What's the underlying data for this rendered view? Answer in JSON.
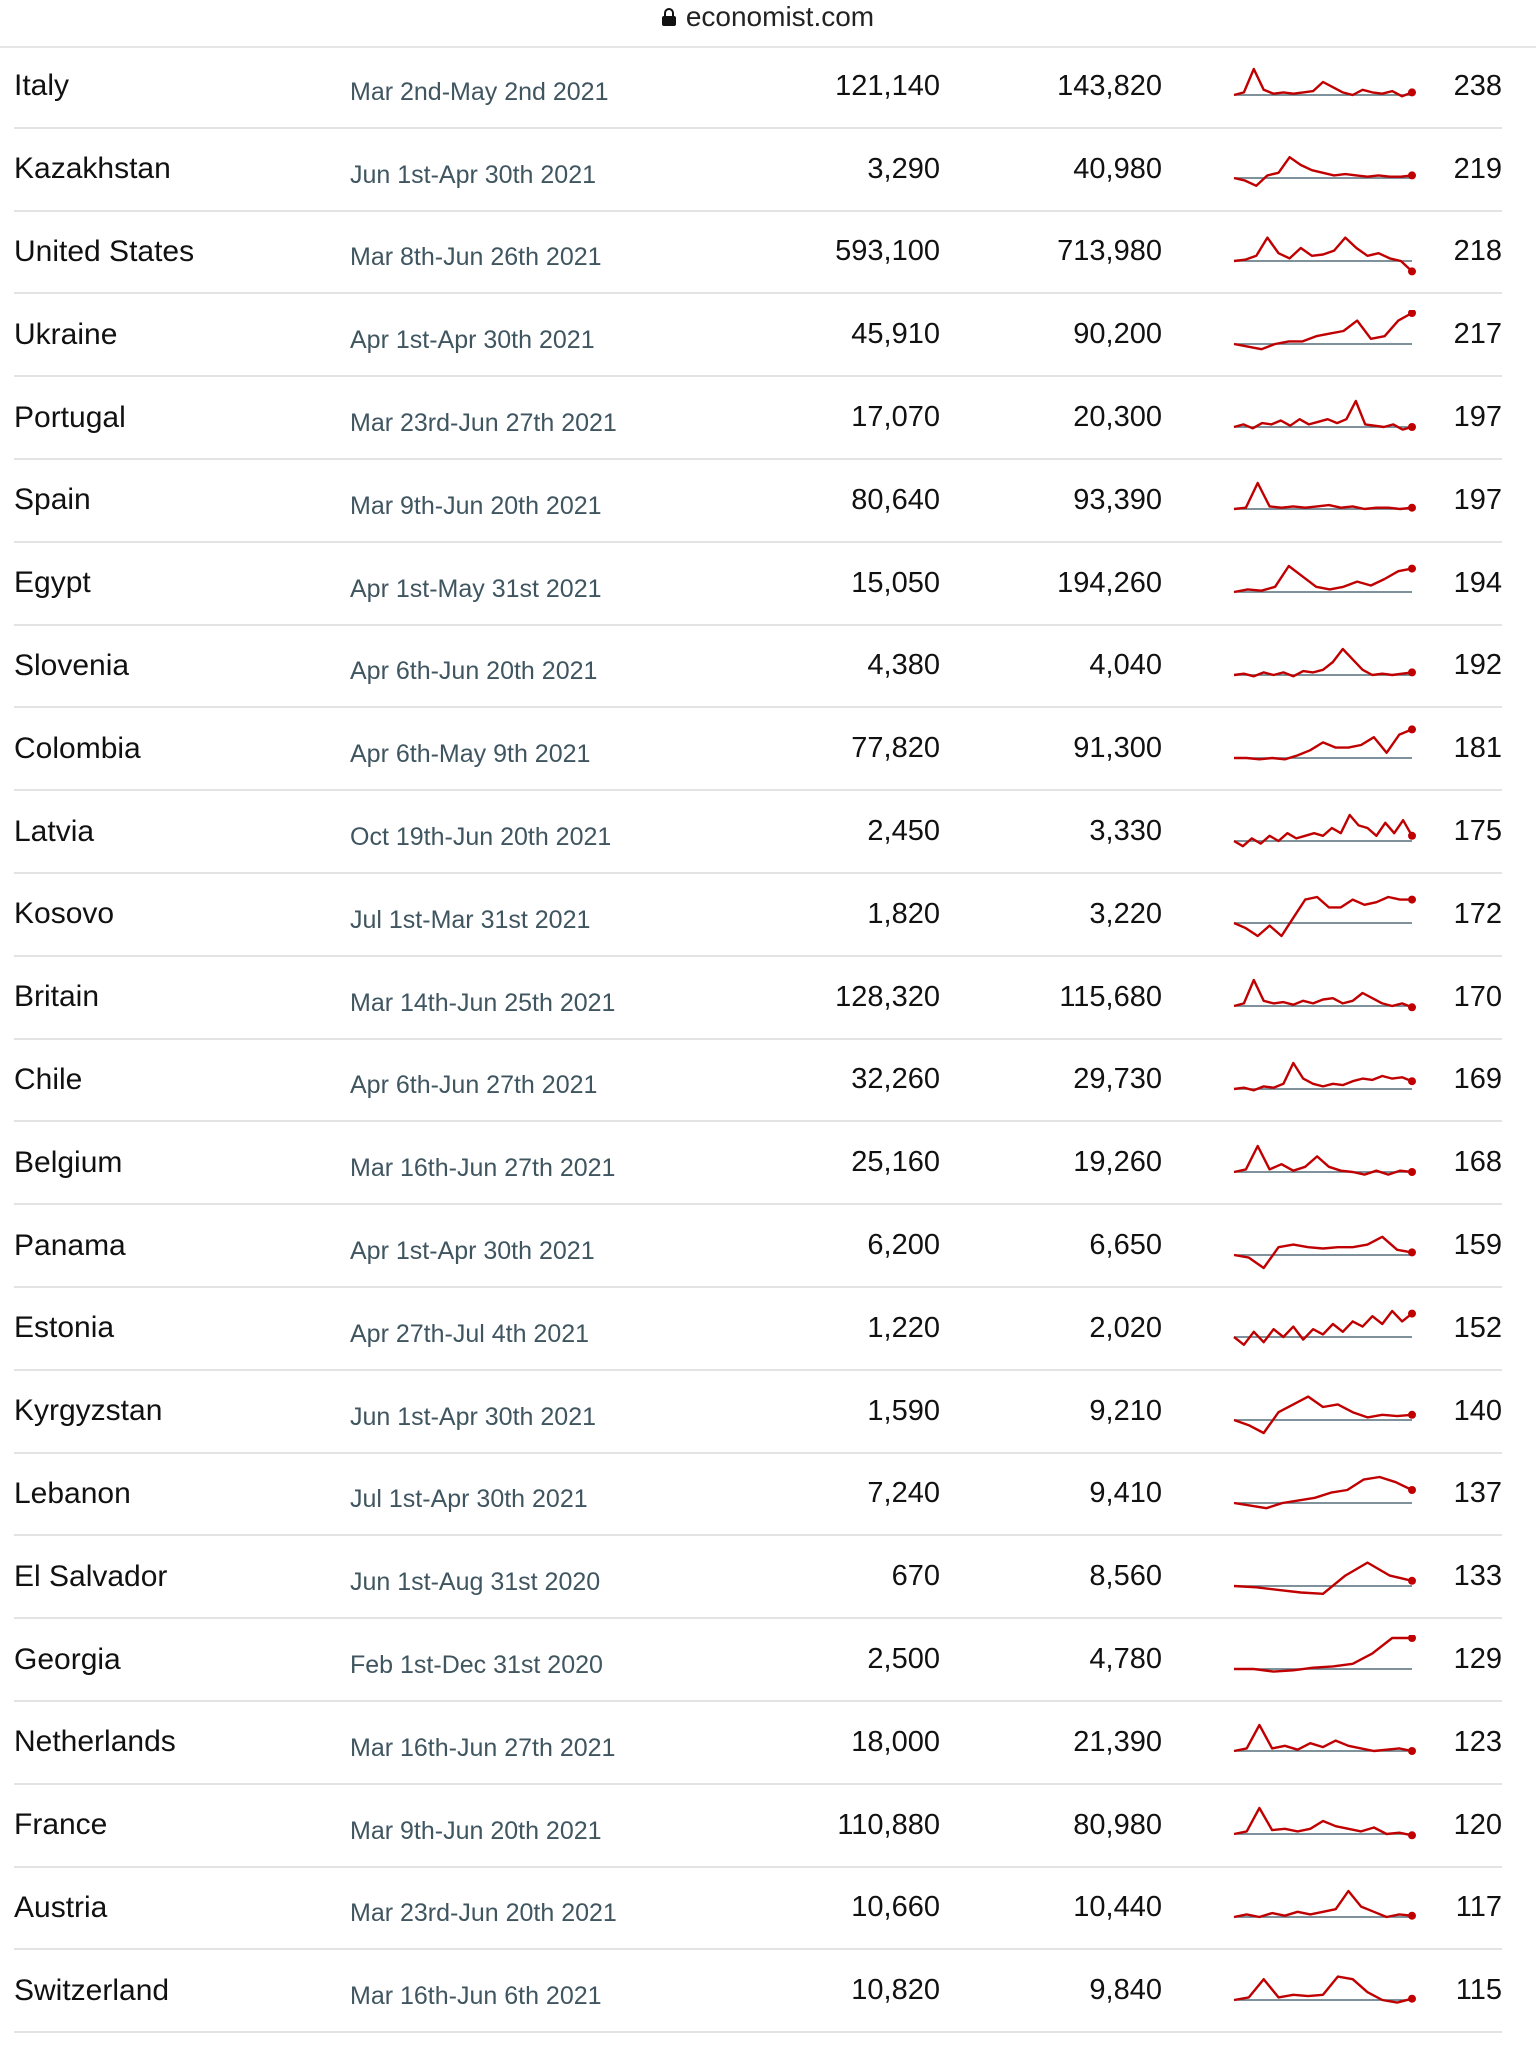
{
  "browser": {
    "url": "economist.com"
  },
  "rows": [
    {
      "country": "Italy",
      "period": "Mar 2nd-May 2nd 2021",
      "official_deaths": "121,140",
      "excess_deaths": "143,820",
      "excess_per_100k": "238",
      "trend": [
        0,
        0.1,
        1.0,
        0.2,
        0.05,
        0.1,
        0.05,
        0.1,
        0.15,
        0.5,
        0.3,
        0.1,
        0.0,
        0.2,
        0.1,
        0.05,
        0.15,
        -0.05,
        0.1
      ]
    },
    {
      "country": "Kazakhstan",
      "period": "Jun 1st-Apr 30th 2021",
      "official_deaths": "3,290",
      "excess_deaths": "40,980",
      "excess_per_100k": "219",
      "trend": [
        0,
        -0.1,
        -0.3,
        0.1,
        0.2,
        0.8,
        0.5,
        0.3,
        0.2,
        0.1,
        0.15,
        0.1,
        0.05,
        0.1,
        0.05,
        0.05,
        0.1
      ]
    },
    {
      "country": "United States",
      "period": "Mar 8th-Jun 26th 2021",
      "official_deaths": "593,100",
      "excess_deaths": "713,980",
      "excess_per_100k": "218",
      "trend": [
        0,
        0.05,
        0.2,
        0.9,
        0.3,
        0.1,
        0.5,
        0.2,
        0.25,
        0.4,
        0.9,
        0.5,
        0.2,
        0.3,
        0.1,
        0.0,
        -0.4
      ]
    },
    {
      "country": "Ukraine",
      "period": "Apr 1st-Apr 30th 2021",
      "official_deaths": "45,910",
      "excess_deaths": "90,200",
      "excess_per_100k": "217",
      "trend": [
        0,
        -0.1,
        -0.2,
        0.0,
        0.1,
        0.1,
        0.3,
        0.4,
        0.5,
        0.9,
        0.2,
        0.3,
        0.9,
        1.2
      ]
    },
    {
      "country": "Portugal",
      "period": "Mar 23rd-Jun 27th 2021",
      "official_deaths": "17,070",
      "excess_deaths": "20,300",
      "excess_per_100k": "197",
      "trend": [
        0,
        0.1,
        -0.05,
        0.15,
        0.1,
        0.25,
        0.05,
        0.3,
        0.1,
        0.2,
        0.3,
        0.15,
        0.3,
        1.0,
        0.1,
        0.05,
        0.0,
        0.1,
        -0.1,
        0.0
      ]
    },
    {
      "country": "Spain",
      "period": "Mar 9th-Jun 20th 2021",
      "official_deaths": "80,640",
      "excess_deaths": "93,390",
      "excess_per_100k": "197",
      "trend": [
        0,
        0.05,
        1.0,
        0.1,
        0.05,
        0.1,
        0.05,
        0.1,
        0.15,
        0.05,
        0.1,
        0.0,
        0.05,
        0.05,
        0.0,
        0.05
      ]
    },
    {
      "country": "Egypt",
      "period": "Apr 1st-May 31st 2021",
      "official_deaths": "15,050",
      "excess_deaths": "194,260",
      "excess_per_100k": "194",
      "trend": [
        0,
        0.1,
        0.05,
        0.2,
        1.0,
        0.6,
        0.2,
        0.1,
        0.2,
        0.4,
        0.25,
        0.5,
        0.8,
        0.9
      ]
    },
    {
      "country": "Slovenia",
      "period": "Apr 6th-Jun 20th 2021",
      "official_deaths": "4,380",
      "excess_deaths": "4,040",
      "excess_per_100k": "192",
      "trend": [
        0,
        0.05,
        -0.05,
        0.1,
        0.0,
        0.1,
        -0.05,
        0.15,
        0.1,
        0.2,
        0.5,
        1.0,
        0.6,
        0.2,
        0.0,
        0.05,
        0.0,
        0.05,
        0.1
      ]
    },
    {
      "country": "Colombia",
      "period": "Apr 6th-May 9th 2021",
      "official_deaths": "77,820",
      "excess_deaths": "91,300",
      "excess_per_100k": "181",
      "trend": [
        0,
        0.0,
        -0.05,
        0.0,
        -0.05,
        0.1,
        0.3,
        0.6,
        0.4,
        0.4,
        0.5,
        0.8,
        0.2,
        0.9,
        1.1
      ]
    },
    {
      "country": "Latvia",
      "period": "Oct 19th-Jun 20th 2021",
      "official_deaths": "2,450",
      "excess_deaths": "3,330",
      "excess_per_100k": "175",
      "trend": [
        0,
        -0.2,
        0.1,
        -0.1,
        0.2,
        0.0,
        0.3,
        0.1,
        0.2,
        0.3,
        0.2,
        0.5,
        0.3,
        1.0,
        0.6,
        0.5,
        0.2,
        0.7,
        0.3,
        0.8,
        0.2
      ]
    },
    {
      "country": "Kosovo",
      "period": "Jul 1st-Mar 31st 2021",
      "official_deaths": "1,820",
      "excess_deaths": "3,220",
      "excess_per_100k": "172",
      "trend": [
        0,
        -0.2,
        -0.5,
        -0.1,
        -0.6,
        0.2,
        0.9,
        1.0,
        0.6,
        0.6,
        0.9,
        0.7,
        0.8,
        1.0,
        0.9,
        0.9
      ]
    },
    {
      "country": "Britain",
      "period": "Mar 14th-Jun 25th 2021",
      "official_deaths": "128,320",
      "excess_deaths": "115,680",
      "excess_per_100k": "170",
      "trend": [
        0,
        0.1,
        1.0,
        0.2,
        0.1,
        0.15,
        0.05,
        0.2,
        0.1,
        0.25,
        0.3,
        0.1,
        0.2,
        0.5,
        0.3,
        0.1,
        0.0,
        0.1,
        -0.05
      ]
    },
    {
      "country": "Chile",
      "period": "Apr 6th-Jun 27th 2021",
      "official_deaths": "32,260",
      "excess_deaths": "29,730",
      "excess_per_100k": "169",
      "trend": [
        0,
        0.05,
        -0.05,
        0.1,
        0.05,
        0.2,
        1.0,
        0.4,
        0.2,
        0.1,
        0.2,
        0.15,
        0.3,
        0.4,
        0.35,
        0.5,
        0.4,
        0.45,
        0.3
      ]
    },
    {
      "country": "Belgium",
      "period": "Mar 16th-Jun 27th 2021",
      "official_deaths": "25,160",
      "excess_deaths": "19,260",
      "excess_per_100k": "168",
      "trend": [
        0,
        0.1,
        1.0,
        0.1,
        0.3,
        0.05,
        0.2,
        0.6,
        0.2,
        0.05,
        0.0,
        -0.1,
        0.05,
        -0.1,
        0.05,
        0.0
      ]
    },
    {
      "country": "Panama",
      "period": "Apr 1st-Apr 30th 2021",
      "official_deaths": "6,200",
      "excess_deaths": "6,650",
      "excess_per_100k": "159",
      "trend": [
        0,
        -0.1,
        -0.6,
        0.3,
        0.4,
        0.3,
        0.25,
        0.3,
        0.3,
        0.4,
        0.7,
        0.2,
        0.1
      ]
    },
    {
      "country": "Estonia",
      "period": "Apr 27th-Jul 4th 2021",
      "official_deaths": "1,220",
      "excess_deaths": "2,020",
      "excess_per_100k": "152",
      "trend": [
        0,
        -0.3,
        0.2,
        -0.2,
        0.3,
        0.0,
        0.4,
        -0.1,
        0.3,
        0.1,
        0.5,
        0.2,
        0.6,
        0.4,
        0.8,
        0.5,
        1.0,
        0.6,
        0.9
      ]
    },
    {
      "country": "Kyrgyzstan",
      "period": "Jun 1st-Apr 30th 2021",
      "official_deaths": "1,590",
      "excess_deaths": "9,210",
      "excess_per_100k": "140",
      "trend": [
        0,
        -0.2,
        -0.6,
        0.3,
        0.6,
        0.9,
        0.5,
        0.6,
        0.3,
        0.1,
        0.2,
        0.15,
        0.2
      ]
    },
    {
      "country": "Lebanon",
      "period": "Jul 1st-Apr 30th 2021",
      "official_deaths": "7,240",
      "excess_deaths": "9,410",
      "excess_per_100k": "137",
      "trend": [
        0,
        -0.1,
        -0.2,
        0.0,
        0.1,
        0.2,
        0.4,
        0.5,
        0.9,
        1.0,
        0.8,
        0.5
      ]
    },
    {
      "country": "El Salvador",
      "period": "Jun 1st-Aug 31st 2020",
      "official_deaths": "670",
      "excess_deaths": "8,560",
      "excess_per_100k": "133",
      "trend": [
        0,
        -0.05,
        -0.15,
        -0.25,
        -0.3,
        0.4,
        0.9,
        0.4,
        0.2
      ]
    },
    {
      "country": "Georgia",
      "period": "Feb 1st-Dec 31st 2020",
      "official_deaths": "2,500",
      "excess_deaths": "4,780",
      "excess_per_100k": "129",
      "trend": [
        0,
        0.0,
        -0.1,
        -0.05,
        0.05,
        0.1,
        0.2,
        0.6,
        1.2,
        1.3
      ]
    },
    {
      "country": "Netherlands",
      "period": "Mar 16th-Jun 27th 2021",
      "official_deaths": "18,000",
      "excess_deaths": "21,390",
      "excess_per_100k": "123",
      "trend": [
        0,
        0.1,
        1.0,
        0.1,
        0.2,
        0.05,
        0.3,
        0.15,
        0.4,
        0.2,
        0.1,
        0.0,
        0.05,
        0.1,
        0.0
      ]
    },
    {
      "country": "France",
      "period": "Mar 9th-Jun 20th 2021",
      "official_deaths": "110,880",
      "excess_deaths": "80,980",
      "excess_per_100k": "120",
      "trend": [
        0,
        0.1,
        1.0,
        0.15,
        0.2,
        0.1,
        0.2,
        0.5,
        0.3,
        0.2,
        0.1,
        0.25,
        0.0,
        0.05,
        -0.05
      ]
    },
    {
      "country": "Austria",
      "period": "Mar 23rd-Jun 20th 2021",
      "official_deaths": "10,660",
      "excess_deaths": "10,440",
      "excess_per_100k": "117",
      "trend": [
        0,
        0.1,
        0.0,
        0.15,
        0.05,
        0.2,
        0.1,
        0.2,
        0.3,
        1.0,
        0.4,
        0.2,
        0.0,
        0.1,
        0.05
      ]
    },
    {
      "country": "Switzerland",
      "period": "Mar 16th-Jun 6th 2021",
      "official_deaths": "10,820",
      "excess_deaths": "9,840",
      "excess_per_100k": "115",
      "trend": [
        0,
        0.1,
        0.8,
        0.1,
        0.2,
        0.15,
        0.2,
        0.9,
        0.8,
        0.3,
        0.0,
        -0.1,
        0.05
      ]
    }
  ],
  "colors": {
    "line": "#c00000",
    "baseline": "#556f7a",
    "period_text": "#3f5560"
  }
}
